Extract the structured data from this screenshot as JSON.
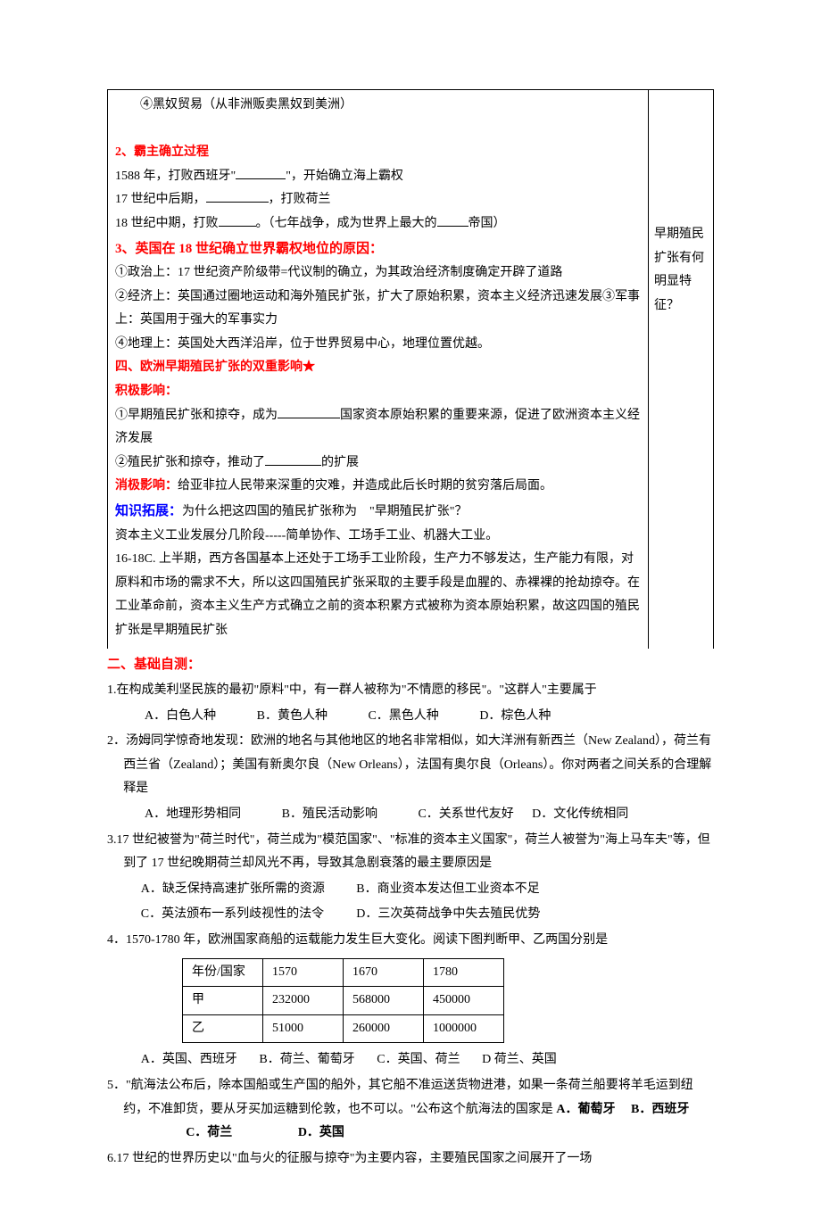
{
  "top_box": {
    "line_slave": "④黑奴贸易（从非洲贩卖黑奴到美洲）",
    "sec2_heading": "2、霸主确立过程",
    "sec2_l1_a": "1588 年，打败西班牙\"",
    "sec2_l1_b": "\"，开始确立海上霸权",
    "sec2_l2_a": "17 世纪中后期，",
    "sec2_l2_b": "，打败荷兰",
    "sec2_l3_a": "18 世纪中期，打败",
    "sec2_l3_b": "。（七年战争，成为世界上最大的",
    "sec2_l3_c": "帝国）",
    "sec3_heading": "3、英国在 18 世纪确立世界霸权地位的原因：",
    "sec3_p1": "①政治上：17 世纪资产阶级带=代议制的确立，为其政治经济制度确定开辟了道路",
    "sec3_p2": "②经济上：英国通过圈地运动和海外殖民扩张，扩大了原始积累，资本主义经济迅速发展③军事上：英国用于强大的军事实力",
    "sec3_p3": "④地理上：英国处大西洋沿岸，位于世界贸易中心，地理位置优越。",
    "sec4_heading_a": "四、欧洲早期殖民扩张的双重影响",
    "sec4_star": "★",
    "positive_label": "积极影响：",
    "positive_p1_a": "①早期殖民扩张和掠夺，成为",
    "positive_p1_b": "国家资本原始积累的重要来源，促进了欧洲资本主义经济发展",
    "positive_p2_a": "②殖民扩张和掠夺，推动了",
    "positive_p2_b": "的扩展",
    "negative_label": "消极影响：",
    "negative_text": "给亚非拉人民带来深重的灾难，并造成此后长时期的贫穷落后局面。",
    "ext_label": "知识拓展：",
    "ext_q": "为什么把这四国的殖民扩张称为　\"早期殖民扩张\"？",
    "ext_p1": "资本主义工业发展分几阶段-----简单协作、工场手工业、机器大工业。",
    "ext_p2": "16-18C. 上半期，西方各国基本上还处于工场手工业阶段，生产力不够发达，生产能力有限，对原料和市场的需求不大，所以这四国殖民扩张采取的主要手段是血腥的、赤裸裸的抢劫掠夺。在工业革命前，资本主义生产方式确立之前的资本积累方式被称为资本原始积累，故这四国的殖民扩张是早期殖民扩张",
    "side_note": "早期殖民扩张有何明显特征？"
  },
  "self_test": {
    "heading": "二、基础自测：",
    "q1_text": "1.在构成美利坚民族的最初\"原料\"中，有一群人被称为\"不情愿的移民\"。\"这群人\"主要属于",
    "q1_opts": {
      "a": "A．白色人种",
      "b": "B．黄色人种",
      "c": "C．黑色人种",
      "d": "D．棕色人种"
    },
    "q2_text": "2．汤姆同学惊奇地发现：欧洲的地名与其他地区的地名非常相似，如大洋洲有新西兰（New Zealand），荷兰有西兰省（Zealand）；美国有新奥尔良（New Orleans），法国有奥尔良（Orleans）。你对两者之间关系的合理解释是",
    "q2_opts": {
      "a": "A．地理形势相同",
      "b": "B．殖民活动影响",
      "c": "C．关系世代友好",
      "d": "D．文化传统相同"
    },
    "q3_text": "3.17 世纪被誉为\"荷兰时代\"，荷兰成为\"模范国家\"、\"标准的资本主义国家\"，荷兰人被誉为\"海上马车夫\"等，但到了 17 世纪晚期荷兰却风光不再，导致其急剧衰落的最主要原因是",
    "q3_opts": {
      "a": "A．缺乏保持高速扩张所需的资源",
      "b": "B．商业资本发达但工业资本不足",
      "c": "C．英法颁布一系列歧视性的法令",
      "d": "D．三次英荷战争中失去殖民优势"
    },
    "q4_text": "4．1570-1780 年，欧洲国家商船的运载能力发生巨大变化。阅读下图判断甲、乙两国分别是",
    "q4_table": {
      "h1": "年份/国家",
      "h2": "1570",
      "h3": "1670",
      "h4": "1780",
      "r1c1": "甲",
      "r1c2": "232000",
      "r1c3": "568000",
      "r1c4": "450000",
      "r2c1": "乙",
      "r2c2": "51000",
      "r2c3": "260000",
      "r2c4": "1000000"
    },
    "q4_opts": {
      "a": "A．英国、西班牙",
      "b": "B．荷兰、葡萄牙",
      "c": "C．英国、荷兰",
      "d": "D  荷兰、英国"
    },
    "q5_text_a": "5．\"航海法公布后，除本国船或生产国的船外，其它船不准运送货物进港，如果一条荷兰船要将羊毛运到纽约，不准卸货，要从牙买加运糖到伦敦，也不可以。\"公布这个航海法的国家是",
    "q5_opts": {
      "a": " A．葡萄牙",
      "b": "B．西班牙",
      "c": "C．荷兰",
      "d": "D．英国"
    },
    "q6_text": "6.17 世纪的世界历史以\"血与火的征服与掠夺\"为主要内容，主要殖民国家之间展开了一场"
  }
}
